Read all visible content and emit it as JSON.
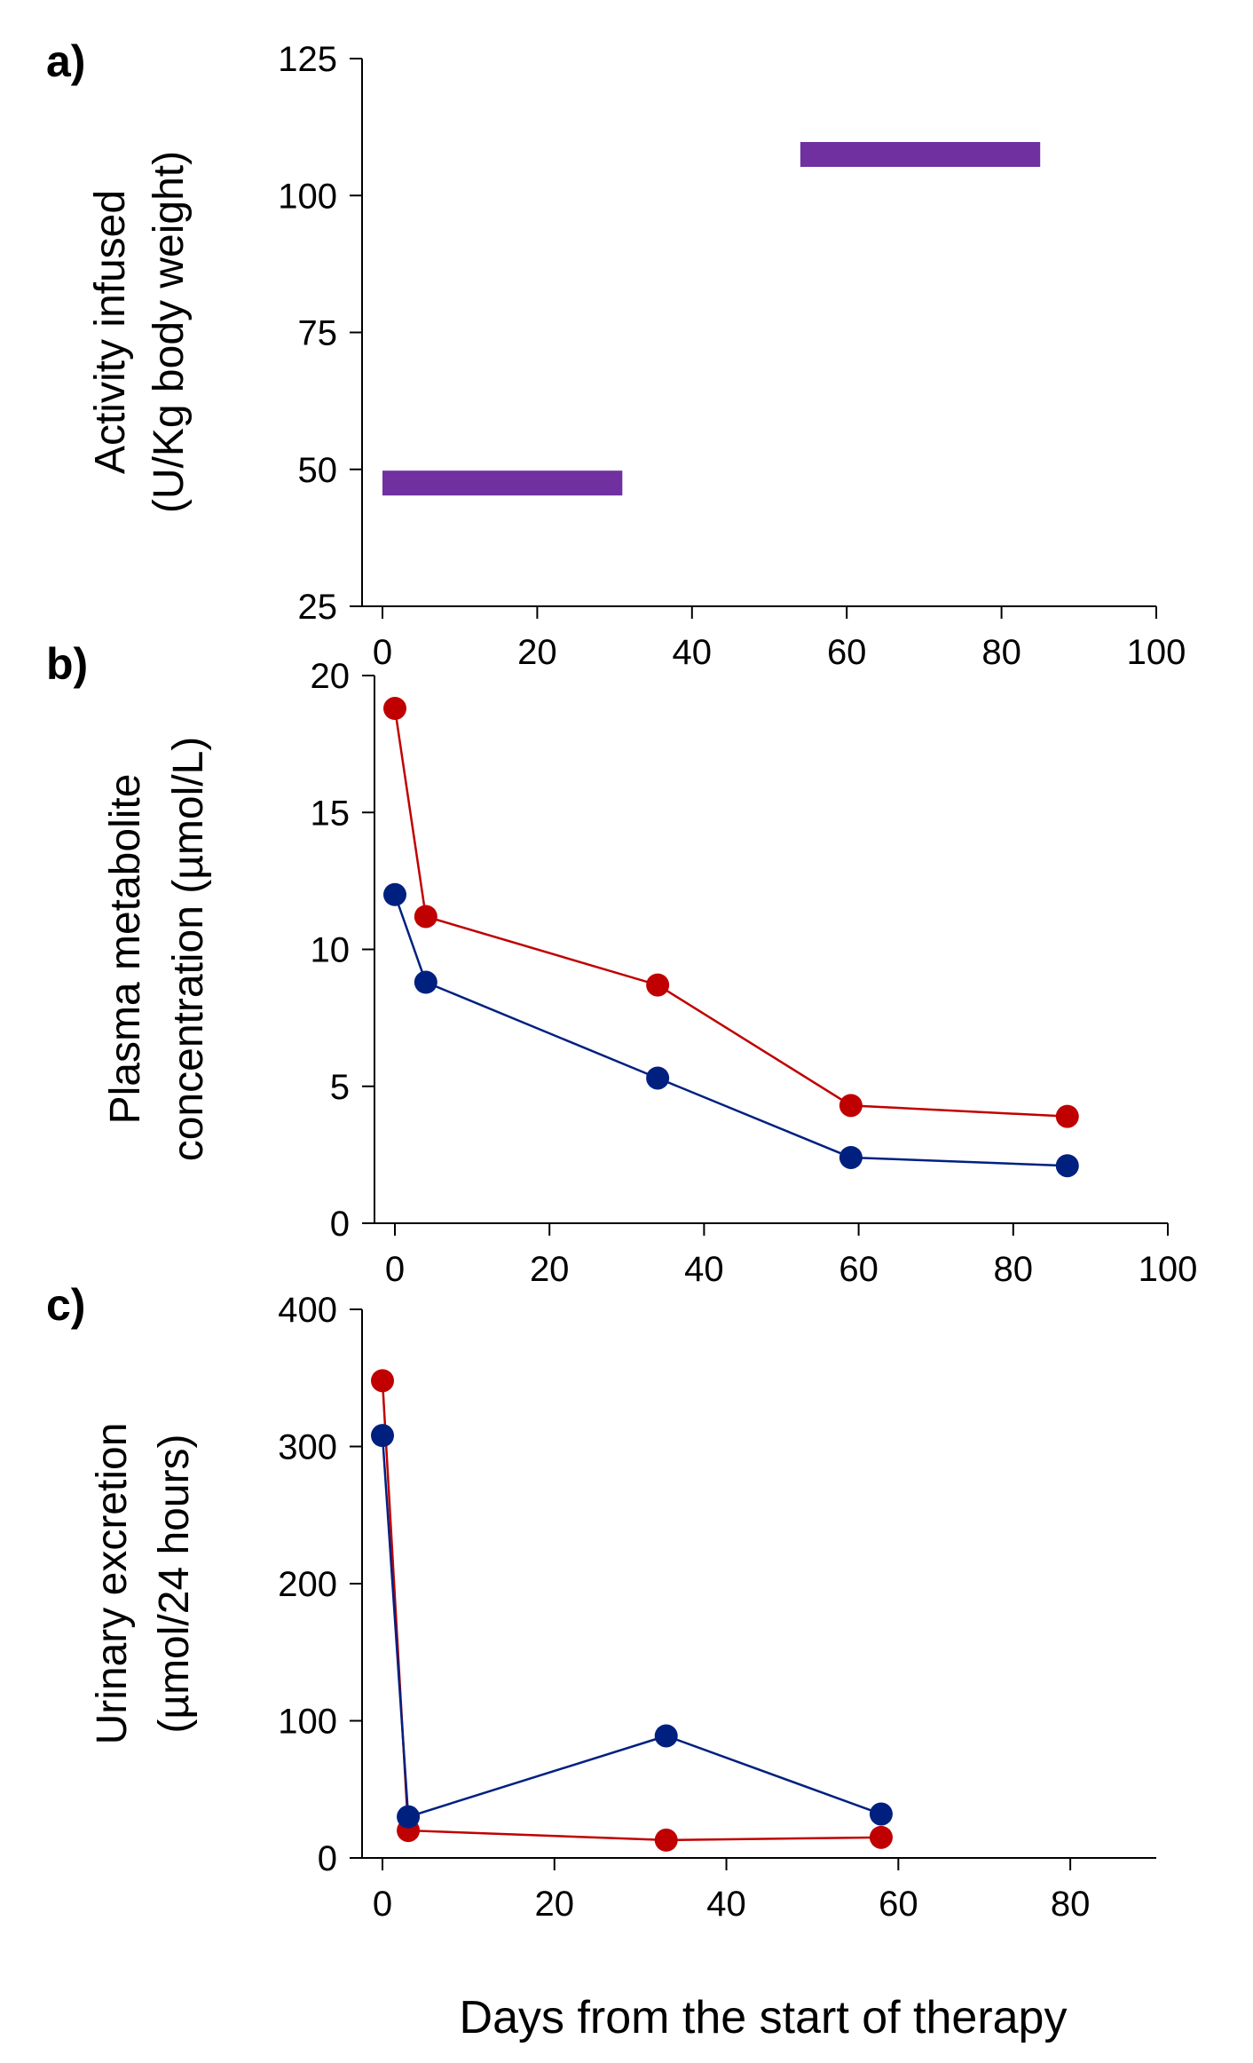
{
  "chart_data": [
    {
      "panel": "a)",
      "type": "bar",
      "subtype": "horizontal-span",
      "ylabel_lines": [
        "Activity infused",
        "(U/Kg body weight)"
      ],
      "xlabel": "",
      "xlim": [
        0,
        100
      ],
      "ylim": [
        25,
        125
      ],
      "xticks": [
        0,
        20,
        40,
        60,
        80,
        100
      ],
      "yticks": [
        25,
        50,
        75,
        100,
        125
      ],
      "spans": [
        {
          "name": "dose 1",
          "x_start": 0,
          "x_end": 31,
          "y": 47.5,
          "color": "#7030A0"
        },
        {
          "name": "dose 2",
          "x_start": 54,
          "x_end": 85,
          "y": 107.5,
          "color": "#7030A0"
        }
      ]
    },
    {
      "panel": "b)",
      "type": "line",
      "ylabel_lines": [
        "Plasma metabolite",
        "concentration (µmol/L)"
      ],
      "xlabel": "",
      "xlim": [
        0,
        100
      ],
      "ylim": [
        0,
        20
      ],
      "xticks": [
        0,
        20,
        40,
        60,
        80,
        100
      ],
      "yticks": [
        0,
        5,
        10,
        15,
        20
      ],
      "series": [
        {
          "name": "red series",
          "color": "#C00000",
          "x": [
            0,
            4,
            34,
            59,
            87
          ],
          "y": [
            18.8,
            11.2,
            8.7,
            4.3,
            3.9
          ]
        },
        {
          "name": "blue series",
          "color": "#002080",
          "x": [
            0,
            4,
            34,
            59,
            87
          ],
          "y": [
            12.0,
            8.8,
            5.3,
            2.4,
            2.1
          ]
        }
      ]
    },
    {
      "panel": "c)",
      "type": "line",
      "ylabel_lines": [
        "Urinary excretion",
        "(µmol/24 hours)"
      ],
      "xlabel": "Days from the start of therapy",
      "xlim": [
        0,
        90
      ],
      "ylim": [
        0,
        400
      ],
      "xticks": [
        0,
        20,
        40,
        60,
        80
      ],
      "yticks": [
        0,
        100,
        200,
        300,
        400
      ],
      "series": [
        {
          "name": "red series",
          "color": "#C00000",
          "x": [
            0,
            3,
            33,
            58
          ],
          "y": [
            348,
            20,
            13,
            15
          ]
        },
        {
          "name": "blue series",
          "color": "#002080",
          "x": [
            0,
            3,
            33,
            58
          ],
          "y": [
            308,
            30,
            89,
            32
          ]
        }
      ]
    }
  ]
}
